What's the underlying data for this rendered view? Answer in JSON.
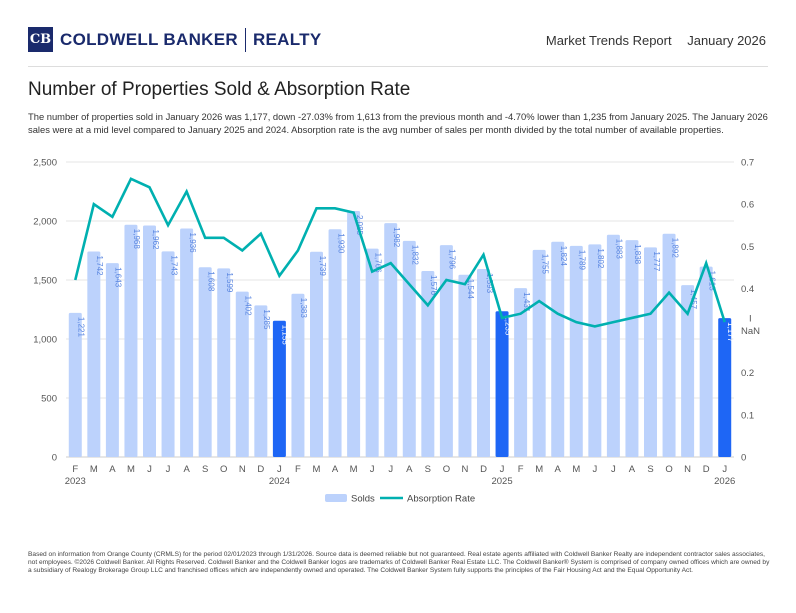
{
  "header": {
    "logo_mark": "CB",
    "brand_name": "COLDWELL BANKER",
    "brand_suffix": "REALTY",
    "report_title": "Market Trends Report",
    "report_period": "January 2026"
  },
  "title": "Number of Properties Sold & Absorption Rate",
  "description": "The number of properties sold in January 2026 was 1,177, down -27.03% from 1,613 from the previous month and -4.70% lower than 1,235 from January 2025. The January 2026 sales were at a mid level compared to January 2025 and 2024. Absorption rate is the avg number of sales per month divided by the total number of available properties.",
  "colors": {
    "bar": "#bcd2fc",
    "bar_highlight": "#1e66f5",
    "line": "#00b0b0",
    "bar_label": "#5a86e0"
  },
  "chart_data": {
    "type": "bar+line",
    "categories": [
      "F",
      "M",
      "A",
      "M",
      "J",
      "J",
      "A",
      "S",
      "O",
      "N",
      "D",
      "J",
      "F",
      "M",
      "A",
      "M",
      "J",
      "J",
      "A",
      "S",
      "O",
      "N",
      "D",
      "J",
      "F",
      "M",
      "A",
      "M",
      "J",
      "J",
      "A",
      "S",
      "O",
      "N",
      "D",
      "J"
    ],
    "year_labels": {
      "0": "2023",
      "11": "2024",
      "23": "2025",
      "35": "2026"
    },
    "highlight_indices": [
      11,
      23,
      35
    ],
    "series": [
      {
        "name": "Solds",
        "type": "bar",
        "axis": "left",
        "values": [
          1221,
          1742,
          1643,
          1968,
          1962,
          1743,
          1936,
          1608,
          1599,
          1402,
          1285,
          1155,
          1383,
          1739,
          1930,
          2085,
          1766,
          1982,
          1832,
          1576,
          1796,
          1544,
          1593,
          1235,
          1431,
          1755,
          1824,
          1789,
          1802,
          1883,
          1838,
          1777,
          1892,
          1457,
          1613,
          1177
        ],
        "labels": [
          "1,221",
          "1,742",
          "1,643",
          "1,968",
          "1,962",
          "1,743",
          "1,936",
          "1,608",
          "1,599",
          "1,402",
          "1,285",
          "1,155",
          "1,383",
          "1,739",
          "1,930",
          "2,085",
          "1,766",
          "1,982",
          "1,832",
          "1,576",
          "1,796",
          "1,544",
          "1,593",
          "1,235",
          "1,431",
          "1,755",
          "1,824",
          "1,789",
          "1,802",
          "1,883",
          "1,838",
          "1,777",
          "1,892",
          "1,457",
          "1,613",
          "1,177"
        ]
      },
      {
        "name": "Absorption Rate",
        "type": "line",
        "axis": "right",
        "values": [
          0.42,
          0.6,
          0.57,
          0.66,
          0.64,
          0.55,
          0.63,
          0.52,
          0.52,
          0.49,
          0.53,
          0.43,
          0.49,
          0.59,
          0.59,
          0.58,
          0.44,
          0.46,
          0.41,
          0.36,
          0.42,
          0.41,
          0.48,
          0.33,
          0.34,
          0.37,
          0.34,
          0.32,
          0.31,
          0.32,
          0.33,
          0.34,
          0.39,
          0.34,
          0.46,
          0.32
        ]
      }
    ],
    "left_axis": {
      "ylim": [
        0,
        2500
      ],
      "ticks": [
        "0",
        "500",
        "1,000",
        "1,500",
        "2,000",
        "2,500"
      ]
    },
    "right_axis": {
      "ylim": [
        0,
        0.7
      ],
      "ticks": [
        "0",
        "0.1",
        "0.2",
        "NaN",
        "0.4",
        "0.5",
        "0.6",
        "0.7"
      ],
      "extra_mark": "I"
    },
    "grid": true,
    "legend": "bottom"
  },
  "footer": "Based on information from Orange County (CRMLS) for the period 02/01/2023 through 1/31/2026. Source data is deemed reliable but not guaranteed. Real estate agents affiliated with Coldwell Banker Realty are independent contractor sales associates, not employees. ©2026 Coldwell Banker. All Rights Reserved. Coldwell Banker and the Coldwell Banker logos are trademarks of Coldwell Banker Real Estate LLC. The Coldwell Banker® System is comprised of company owned offices which are owned by a subsidiary of Realogy Brokerage Group LLC and franchised offices which are independently owned and operated. The Coldwell Banker System fully supports the principles of the Fair Housing Act and the Equal Opportunity Act."
}
